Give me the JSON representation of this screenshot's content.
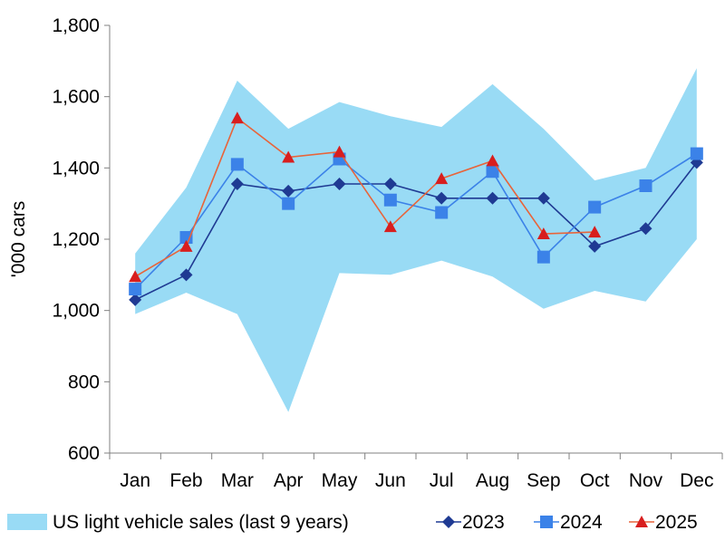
{
  "chart_data": {
    "type": "line",
    "title": "",
    "xlabel": "",
    "ylabel": "'000 cars",
    "ylim": [
      600,
      1800
    ],
    "yticks": [
      600,
      800,
      1000,
      1200,
      1400,
      1600,
      1800
    ],
    "ytick_labels": [
      "600",
      "800",
      "1,000",
      "1,200",
      "1,400",
      "1,600",
      "1,800"
    ],
    "categories": [
      "Jan",
      "Feb",
      "Mar",
      "Apr",
      "May",
      "Jun",
      "Jul",
      "Aug",
      "Sep",
      "Oct",
      "Nov",
      "Dec"
    ],
    "grid": false,
    "legend_position": "bottom",
    "band": {
      "name": "US light vehicle sales (last 9 years)",
      "color": "#99dbf5",
      "upper": [
        1160,
        1345,
        1645,
        1510,
        1585,
        1545,
        1515,
        1635,
        1510,
        1365,
        1400,
        1680
      ],
      "lower": [
        990,
        1050,
        990,
        715,
        1105,
        1100,
        1140,
        1095,
        1005,
        1055,
        1025,
        1200
      ]
    },
    "series": [
      {
        "name": "2023",
        "marker": "diamond",
        "color": "#1f3a93",
        "values": [
          1030,
          1100,
          1355,
          1335,
          1355,
          1355,
          1315,
          1315,
          1315,
          1180,
          1230,
          1415
        ]
      },
      {
        "name": "2024",
        "marker": "square",
        "color": "#3b82e8",
        "values": [
          1060,
          1205,
          1410,
          1300,
          1425,
          1310,
          1275,
          1390,
          1150,
          1290,
          1350,
          1440
        ]
      },
      {
        "name": "2025",
        "marker": "triangle",
        "color": "#d81e1e",
        "line_color": "#e8643a",
        "values": [
          1095,
          1180,
          1540,
          1430,
          1445,
          1235,
          1370,
          1420,
          1215,
          1220,
          null,
          null
        ]
      }
    ]
  }
}
